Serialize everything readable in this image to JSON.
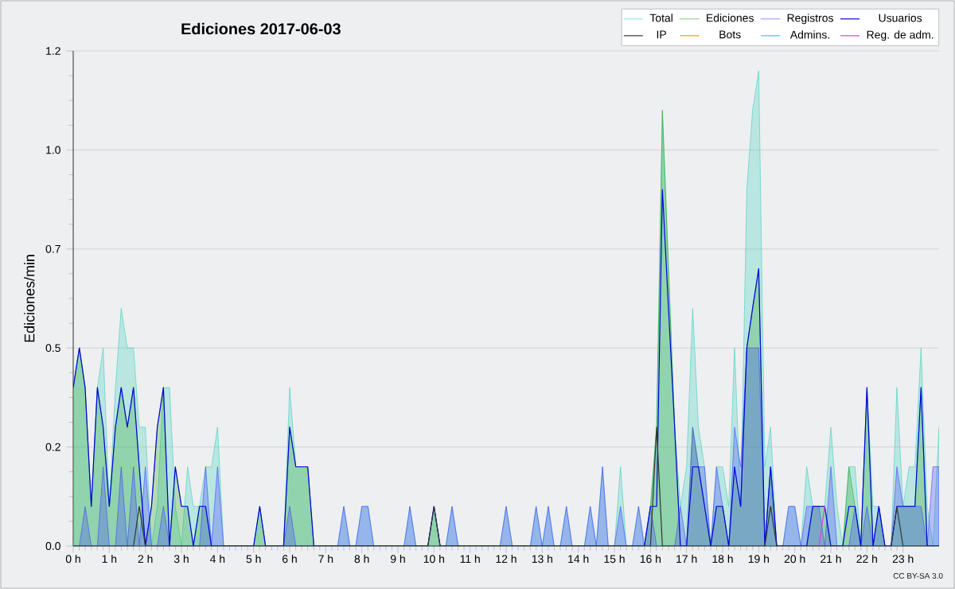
{
  "chart_data": {
    "type": "area",
    "title": "Ediciones  2017-06-03",
    "ylabel": "Ediciones/min",
    "annotations": [
      "CC BY-SA 3.0"
    ],
    "x": [
      0,
      0.17,
      0.33,
      0.5,
      0.67,
      0.83,
      1,
      1.17,
      1.33,
      1.5,
      1.67,
      1.83,
      2,
      2.17,
      2.33,
      2.5,
      2.67,
      2.83,
      3,
      3.17,
      3.33,
      3.5,
      3.67,
      3.83,
      4,
      4.17,
      4.33,
      4.5,
      4.67,
      4.83,
      5,
      5.17,
      5.33,
      5.5,
      5.67,
      5.83,
      6,
      6.17,
      6.33,
      6.5,
      6.67,
      6.83,
      7,
      7.17,
      7.33,
      7.5,
      7.67,
      7.83,
      8,
      8.17,
      8.33,
      8.5,
      8.67,
      8.83,
      9,
      9.17,
      9.33,
      9.5,
      9.67,
      9.83,
      10,
      10.17,
      10.33,
      10.5,
      10.67,
      10.83,
      11,
      11.17,
      11.33,
      11.5,
      11.67,
      11.83,
      12,
      12.17,
      12.33,
      12.5,
      12.67,
      12.83,
      13,
      13.17,
      13.33,
      13.5,
      13.67,
      13.83,
      14,
      14.17,
      14.33,
      14.5,
      14.67,
      14.83,
      15,
      15.17,
      15.33,
      15.5,
      15.67,
      15.83,
      16,
      16.17,
      16.33,
      16.5,
      16.67,
      16.83,
      17,
      17.17,
      17.33,
      17.5,
      17.67,
      17.83,
      18,
      18.17,
      18.33,
      18.5,
      18.67,
      18.83,
      19,
      19.17,
      19.33,
      19.5,
      19.67,
      19.83,
      20,
      20.17,
      20.33,
      20.5,
      20.67,
      20.83,
      21,
      21.17,
      21.33,
      21.5,
      21.67,
      21.83,
      22,
      22.17,
      22.33,
      22.5,
      22.67,
      22.83,
      23,
      23.17,
      23.33,
      23.5,
      23.67,
      23.83,
      24
    ],
    "series": [
      {
        "name": "Total",
        "color": "#40d0c0",
        "values": [
          0.4,
          0.5,
          0.4,
          0.1,
          0.4,
          0.5,
          0.1,
          0.4,
          0.6,
          0.5,
          0.5,
          0.3,
          0.3,
          0,
          0.1,
          0.4,
          0.4,
          0.1,
          0,
          0.2,
          0.1,
          0.1,
          0.2,
          0.2,
          0.3,
          0,
          0,
          0,
          0,
          0,
          0,
          0.1,
          0,
          0,
          0,
          0,
          0.4,
          0.2,
          0.2,
          0.2,
          0,
          0,
          0,
          0,
          0,
          0.1,
          0,
          0,
          0.1,
          0.1,
          0,
          0,
          0,
          0,
          0,
          0,
          0.1,
          0,
          0,
          0,
          0.1,
          0,
          0,
          0.1,
          0,
          0,
          0,
          0,
          0,
          0,
          0,
          0,
          0.1,
          0,
          0,
          0,
          0,
          0.1,
          0,
          0.1,
          0,
          0,
          0.1,
          0,
          0,
          0,
          0.1,
          0,
          0.2,
          0,
          0,
          0.2,
          0,
          0,
          0.1,
          0,
          0.1,
          0.3,
          1.1,
          0.7,
          0.3,
          0.1,
          0.2,
          0.6,
          0.3,
          0.2,
          0,
          0.2,
          0.2,
          0.1,
          0.5,
          0.1,
          0.9,
          1.1,
          1.2,
          0.2,
          0.3,
          0,
          0,
          0.1,
          0.1,
          0,
          0.2,
          0.1,
          0.1,
          0.1,
          0.3,
          0.1,
          0,
          0.2,
          0.2,
          0,
          0.4,
          0.1,
          0.1,
          0,
          0,
          0.4,
          0.1,
          0.2,
          0.2,
          0.5,
          0.1,
          0,
          0.3
        ]
      },
      {
        "name": "Ediciones",
        "color": "#33aa33",
        "values": [
          0.4,
          0.5,
          0.4,
          0.1,
          0.4,
          0.3,
          0.1,
          0.3,
          0.4,
          0.3,
          0.4,
          0.2,
          0,
          0.1,
          0.3,
          0.4,
          0,
          0.2,
          0.1,
          0.1,
          0,
          0.1,
          0.1,
          0,
          0,
          0,
          0,
          0,
          0,
          0,
          0,
          0.1,
          0,
          0,
          0,
          0,
          0.3,
          0.2,
          0.2,
          0.2,
          0,
          0,
          0,
          0,
          0,
          0,
          0,
          0,
          0,
          0,
          0,
          0,
          0,
          0,
          0,
          0,
          0,
          0,
          0,
          0,
          0.1,
          0,
          0,
          0,
          0,
          0,
          0,
          0,
          0,
          0,
          0,
          0,
          0,
          0,
          0,
          0,
          0,
          0,
          0,
          0,
          0,
          0,
          0,
          0,
          0,
          0,
          0,
          0,
          0,
          0,
          0,
          0,
          0,
          0,
          0,
          0,
          0.1,
          0.3,
          1.1,
          0.7,
          0.3,
          0,
          0,
          0.3,
          0.2,
          0.1,
          0,
          0.1,
          0.1,
          0,
          0.2,
          0.1,
          0.5,
          0.6,
          0.7,
          0,
          0.2,
          0,
          0,
          0,
          0,
          0,
          0,
          0.1,
          0.1,
          0.1,
          0,
          0,
          0,
          0.2,
          0.1,
          0,
          0.4,
          0,
          0.1,
          0,
          0,
          0.1,
          0.1,
          0.1,
          0.1,
          0.4,
          0,
          0,
          0
        ]
      },
      {
        "name": "Usuarios",
        "type": "line",
        "color": "#0000dd",
        "values": [
          0.4,
          0.5,
          0.4,
          0.1,
          0.4,
          0.3,
          0.1,
          0.3,
          0.4,
          0.3,
          0.4,
          0.2,
          0,
          0.1,
          0.3,
          0.4,
          0,
          0.2,
          0.1,
          0.1,
          0,
          0.1,
          0.1,
          0,
          0,
          0,
          0,
          0,
          0,
          0,
          0,
          0.1,
          0,
          0,
          0,
          0,
          0.3,
          0.2,
          0.2,
          0.2,
          0,
          0,
          0,
          0,
          0,
          0,
          0,
          0,
          0,
          0,
          0,
          0,
          0,
          0,
          0,
          0,
          0,
          0,
          0,
          0,
          0.1,
          0,
          0,
          0,
          0,
          0,
          0,
          0,
          0,
          0,
          0,
          0,
          0,
          0,
          0,
          0,
          0,
          0,
          0,
          0,
          0,
          0,
          0,
          0,
          0,
          0,
          0,
          0,
          0,
          0,
          0,
          0,
          0,
          0,
          0,
          0,
          0.1,
          0.1,
          0.9,
          0.6,
          0.3,
          0,
          0,
          0.2,
          0.2,
          0.1,
          0,
          0.1,
          0.1,
          0,
          0.2,
          0.1,
          0.5,
          0.6,
          0.7,
          0,
          0.2,
          0,
          0,
          0,
          0,
          0,
          0,
          0.1,
          0.1,
          0.1,
          0,
          0,
          0,
          0.1,
          0.1,
          0,
          0.4,
          0,
          0.1,
          0,
          0,
          0.1,
          0.1,
          0.1,
          0.1,
          0.4,
          0,
          0,
          0
        ]
      },
      {
        "name": "IP",
        "type": "line",
        "color": "#333333",
        "x": [
          0,
          1.67,
          1.83,
          2,
          9.83,
          10,
          10.17,
          16,
          16.17,
          16.33,
          19.17,
          19.33,
          19.5,
          22.67,
          22.83,
          23,
          24
        ],
        "values": [
          0,
          0,
          0.1,
          0,
          0,
          0.1,
          0,
          0,
          0.3,
          0,
          0,
          0.1,
          0,
          0,
          0.1,
          0,
          0
        ]
      },
      {
        "name": "Bots",
        "type": "line",
        "color": "#ff9900",
        "values": [
          null,
          null,
          null,
          null,
          null,
          null,
          null,
          null,
          null,
          null,
          null,
          null,
          null,
          null,
          null,
          null,
          null,
          null,
          null,
          null,
          null,
          null,
          null,
          null,
          null,
          null,
          null,
          null,
          null,
          null,
          null,
          null,
          null,
          null,
          null,
          null,
          null,
          null,
          null,
          null,
          null,
          null,
          null,
          null,
          null,
          null,
          null,
          null,
          null,
          null,
          null,
          null,
          null,
          null,
          null,
          null,
          null,
          null,
          null,
          null,
          null,
          null,
          null,
          null,
          null,
          null,
          null,
          null,
          null,
          null,
          null,
          null,
          null,
          null,
          null,
          null,
          null,
          null,
          null,
          null,
          null,
          null,
          null,
          null,
          null,
          null,
          null,
          null,
          null,
          null,
          null,
          null,
          null,
          null,
          null,
          null,
          null,
          null,
          null,
          null,
          null,
          null,
          null,
          null,
          null,
          null,
          null,
          null,
          null,
          null,
          null,
          null,
          null,
          null,
          null,
          null,
          null,
          null,
          null,
          null,
          null,
          null,
          null,
          null,
          null,
          null,
          null,
          null,
          null,
          null,
          null,
          null,
          null,
          null,
          null,
          null,
          null,
          null,
          null,
          null,
          null,
          null,
          null,
          null,
          null
        ]
      },
      {
        "name": "Admins.",
        "type": "line",
        "color": "#33ccee",
        "values": [
          null,
          null,
          null,
          null,
          null,
          null,
          null,
          null,
          null,
          null,
          null,
          null,
          null,
          null,
          null,
          null,
          null,
          null,
          null,
          null,
          null,
          null,
          null,
          null,
          null,
          null,
          null,
          null,
          null,
          null,
          null,
          null,
          null,
          null,
          null,
          null,
          null,
          null,
          null,
          null,
          null,
          null,
          null,
          null,
          null,
          null,
          null,
          null,
          null,
          null,
          null,
          null,
          null,
          null,
          null,
          null,
          null,
          null,
          null,
          null,
          null,
          null,
          null,
          null,
          null,
          null,
          null,
          null,
          null,
          null,
          null,
          null,
          null,
          null,
          null,
          null,
          null,
          null,
          null,
          null,
          null,
          null,
          null,
          null,
          null,
          null,
          null,
          null,
          null,
          null,
          null,
          null,
          null,
          null,
          null,
          null,
          null,
          null,
          null,
          null,
          null,
          null,
          null,
          null,
          null,
          null,
          null,
          null,
          null,
          null,
          null,
          null,
          null,
          null,
          null,
          null,
          null,
          null,
          null,
          null,
          null,
          null,
          null,
          null,
          null,
          null,
          null,
          null,
          null,
          null,
          null,
          null,
          null,
          null,
          null,
          null,
          null,
          null,
          null,
          null,
          null,
          null,
          null,
          null,
          null
        ]
      },
      {
        "name": "Reg. de adm.",
        "type": "line",
        "color": "#ee33ee",
        "x": [
          20.67,
          20.83
        ],
        "values": [
          0,
          0.1
        ]
      },
      {
        "name": "Registros",
        "color": "#4444ff",
        "values": [
          0,
          0,
          0.1,
          0,
          0,
          0.2,
          0,
          0,
          0.2,
          0,
          0.2,
          0,
          0.2,
          0,
          0,
          0.1,
          0,
          0,
          0,
          0,
          0,
          0,
          0.2,
          0,
          0.2,
          0,
          0,
          0,
          0,
          0,
          0,
          0,
          0,
          0,
          0,
          0,
          0.1,
          0,
          0,
          0,
          0,
          0,
          0,
          0,
          0,
          0.1,
          0,
          0,
          0.1,
          0.1,
          0,
          0,
          0,
          0,
          0,
          0,
          0.1,
          0,
          0,
          0,
          0,
          0,
          0,
          0.1,
          0,
          0,
          0,
          0,
          0,
          0,
          0,
          0,
          0.1,
          0,
          0,
          0,
          0,
          0.1,
          0,
          0.1,
          0,
          0,
          0.1,
          0,
          0,
          0,
          0.1,
          0,
          0.2,
          0,
          0,
          0.1,
          0,
          0,
          0.1,
          0,
          0.1,
          0,
          0,
          0,
          0,
          0.1,
          0,
          0.3,
          0.2,
          0.2,
          0,
          0.2,
          0.1,
          0,
          0.3,
          0.2,
          0.5,
          0.5,
          0.5,
          0,
          0.2,
          0,
          0,
          0.1,
          0.1,
          0,
          0.1,
          0.1,
          0.1,
          0,
          0.2,
          0,
          0,
          0,
          0.1,
          0,
          0.1,
          0,
          0.1,
          0,
          0,
          0.2,
          0.1,
          0.1,
          0.1,
          0.1,
          0,
          0.2,
          0.2
        ]
      }
    ],
    "xlim": [
      0,
      24
    ],
    "xticks": [
      {
        "value": 0,
        "label": "0 h"
      },
      {
        "value": 1,
        "label": "1 h"
      },
      {
        "value": 2,
        "label": "2 h"
      },
      {
        "value": 3,
        "label": "3 h"
      },
      {
        "value": 4,
        "label": "4 h"
      },
      {
        "value": 5,
        "label": "5 h"
      },
      {
        "value": 6,
        "label": "6 h"
      },
      {
        "value": 7,
        "label": "7 h"
      },
      {
        "value": 8,
        "label": "8 h"
      },
      {
        "value": 9,
        "label": "9 h"
      },
      {
        "value": 10,
        "label": "10 h"
      },
      {
        "value": 11,
        "label": "11 h"
      },
      {
        "value": 12,
        "label": "12 h"
      },
      {
        "value": 13,
        "label": "13 h"
      },
      {
        "value": 14,
        "label": "14 h"
      },
      {
        "value": 15,
        "label": "15 h"
      },
      {
        "value": 16,
        "label": "16 h"
      },
      {
        "value": 17,
        "label": "17 h"
      },
      {
        "value": 18,
        "label": "18 h"
      },
      {
        "value": 19,
        "label": "19 h"
      },
      {
        "value": 20,
        "label": "20 h"
      },
      {
        "value": 21,
        "label": "21 h"
      },
      {
        "value": 22,
        "label": "22 h"
      },
      {
        "value": 23,
        "label": "23 h"
      }
    ],
    "ylim": [
      0,
      1.25
    ],
    "yticks": [
      {
        "value": 0,
        "label": "0.0"
      },
      {
        "value": 0.25,
        "label": "0.2"
      },
      0.5,
      {
        "value": 0.75,
        "label": "0.7"
      },
      {
        "value": 1,
        "label": "1.0"
      },
      {
        "value": 1.25,
        "label": "1.2"
      }
    ],
    "grid": "y",
    "legend": "top right"
  }
}
